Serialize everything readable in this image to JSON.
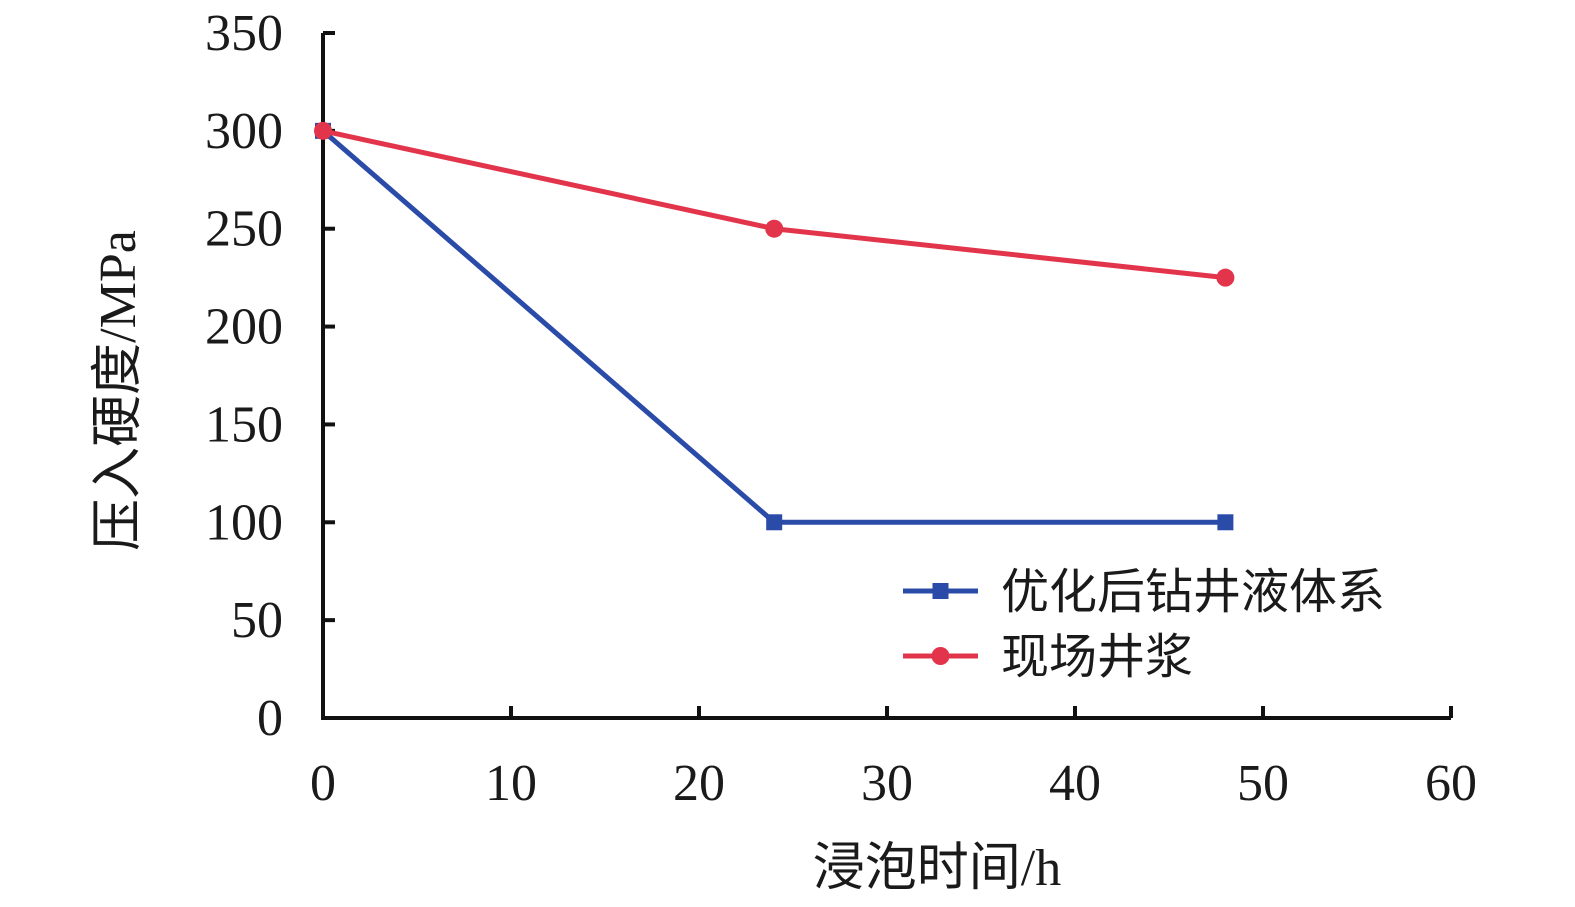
{
  "chart_data": {
    "type": "line",
    "title": "",
    "xlabel": "浸泡时间/h",
    "ylabel": "压入硬度/MPa",
    "xlim": [
      0,
      60
    ],
    "ylim": [
      0,
      350
    ],
    "x_ticks": [
      "0",
      "10",
      "20",
      "30",
      "40",
      "50",
      "60"
    ],
    "y_ticks": [
      "0",
      "50",
      "100",
      "150",
      "200",
      "250",
      "300",
      "350"
    ],
    "grid": false,
    "legend_position": "bottom-right",
    "series": [
      {
        "name": "优化后钻井液体系",
        "color": "#2b4ba8",
        "marker": "square",
        "x": [
          0,
          24,
          48
        ],
        "y": [
          300,
          100,
          100
        ]
      },
      {
        "name": "现场井浆",
        "color": "#e2354b",
        "marker": "circle",
        "x": [
          0,
          24,
          48
        ],
        "y": [
          300,
          250,
          225
        ]
      }
    ]
  }
}
